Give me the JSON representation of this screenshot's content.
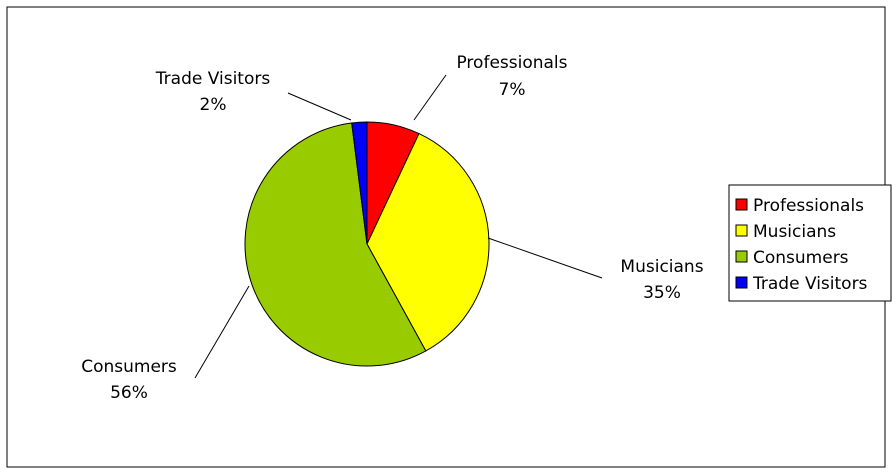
{
  "chart_data": {
    "type": "pie",
    "title": "",
    "start_angle_deg": 0,
    "direction": "clockwise",
    "slices": [
      {
        "name": "Professionals",
        "value": 7,
        "label_value": "7%",
        "color": "#ff0000"
      },
      {
        "name": "Musicians",
        "value": 35,
        "label_value": "35%",
        "color": "#ffff00"
      },
      {
        "name": "Consumers",
        "value": 56,
        "label_value": "56%",
        "color": "#99cc00"
      },
      {
        "name": "Trade Visitors",
        "value": 2,
        "label_value": "2%",
        "color": "#0000ff"
      }
    ],
    "legend": {
      "placement": "right",
      "entries": [
        "Professionals",
        "Musicians",
        "Consumers",
        "Trade Visitors"
      ]
    },
    "labels": {
      "show_category": true,
      "show_percent": true,
      "leader_lines": true
    },
    "colors": {
      "border": "#000000",
      "background": "#ffffff"
    }
  }
}
